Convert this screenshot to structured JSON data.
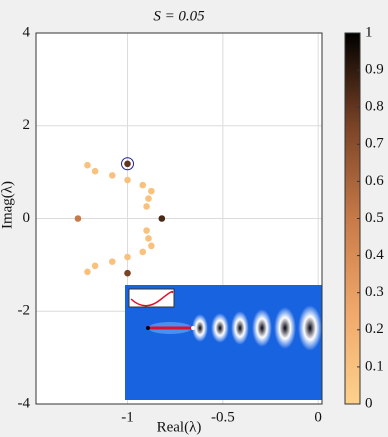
{
  "chart_data": {
    "type": "scatter",
    "title": "S = 0.05",
    "xlabel": "Real(λ)",
    "ylabel": "Imag(λ)",
    "x": [
      -1.21,
      -1.17,
      -1.08,
      -1.0,
      -0.92,
      -0.875,
      -0.89,
      -0.9,
      -1.21,
      -1.17,
      -1.08,
      -1.0,
      -0.92,
      -0.875,
      -0.89,
      -0.9,
      -1.26,
      -0.82,
      -1.0,
      -1.0
    ],
    "y": [
      1.15,
      1.02,
      0.93,
      0.83,
      0.72,
      0.59,
      0.43,
      0.26,
      -1.15,
      -1.02,
      -0.93,
      -0.83,
      -0.72,
      -0.59,
      -0.43,
      -0.26,
      0,
      0,
      1.18,
      -1.18
    ],
    "c": [
      0.1,
      0.1,
      0.1,
      0.1,
      0.1,
      0.1,
      0.1,
      0.1,
      0.1,
      0.1,
      0.1,
      0.1,
      0.1,
      0.1,
      0.1,
      0.1,
      0.5,
      0.85,
      0.8,
      0.75
    ],
    "colormap": [
      "#fdd18c",
      "#f0a86a",
      "#c77a48",
      "#7a4326",
      "#000000"
    ],
    "xlim": [
      -1.48,
      0.02
    ],
    "xticks": [
      -1,
      -0.5,
      0
    ],
    "ylim": [
      -4,
      4
    ],
    "yticks": [
      -4,
      -2,
      0,
      2,
      4
    ],
    "clim": [
      0,
      1
    ],
    "cticks": [
      0,
      0.1,
      0.2,
      0.3,
      0.4,
      0.5,
      0.6,
      0.7,
      0.8,
      0.9,
      1
    ],
    "grid": true
  }
}
